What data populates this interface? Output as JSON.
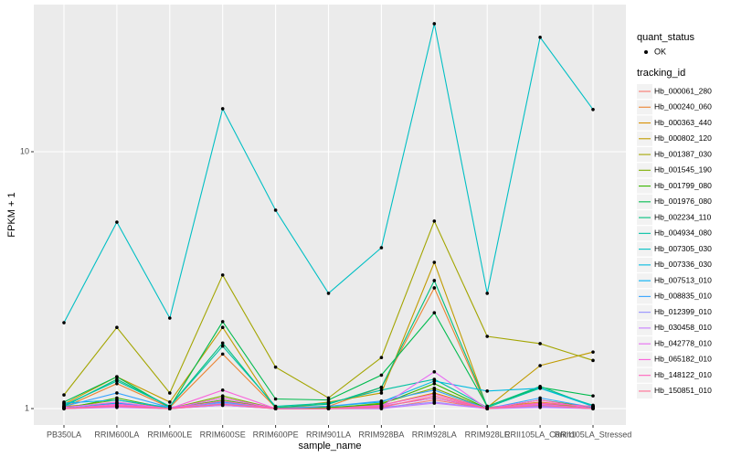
{
  "chart_data": {
    "type": "line",
    "x_label": "sample_name",
    "y_label": "FPKM + 1",
    "log_y": true,
    "grid": true,
    "categories": [
      "PB350LA",
      "RRIM600LA",
      "RRIM600LE",
      "RRIM600SE",
      "RRIM600PE",
      "RRIM901LA",
      "RRIM928BA",
      "RRIM928LA",
      "RRIM928LE",
      "RRII105LA_Control",
      "RRII105LA_Stressed"
    ],
    "ylim": [
      0.863,
      37.4
    ],
    "yticks": [
      1,
      10
    ],
    "legend_title": "tracking_id",
    "shape_legend": {
      "title": "quant_status",
      "labels": [
        "OK"
      ]
    },
    "series": [
      {
        "name": "Hb_000061_280",
        "color": "#F8766D",
        "values": [
          1.0,
          1.02,
          1.0,
          1.03,
          1.0,
          1.0,
          1.0,
          1.08,
          1.0,
          1.02,
          1.0
        ]
      },
      {
        "name": "Hb_000240_060",
        "color": "#EA8331",
        "values": [
          1.01,
          1.25,
          1.01,
          1.63,
          1.01,
          1.02,
          1.21,
          2.95,
          1.01,
          1.06,
          1.01
        ]
      },
      {
        "name": "Hb_000363_440",
        "color": "#D89000",
        "values": [
          1.02,
          1.05,
          1.0,
          1.1,
          1.0,
          1.01,
          1.03,
          1.15,
          1.0,
          1.04,
          1.02
        ]
      },
      {
        "name": "Hb_000802_120",
        "color": "#C09B00",
        "values": [
          1.04,
          1.33,
          1.06,
          2.07,
          1.0,
          1.06,
          1.15,
          3.71,
          1.01,
          1.47,
          1.66
        ]
      },
      {
        "name": "Hb_001387_030",
        "color": "#A3A500",
        "values": [
          1.13,
          2.07,
          1.15,
          3.31,
          1.45,
          1.1,
          1.58,
          5.37,
          1.91,
          1.79,
          1.54
        ]
      },
      {
        "name": "Hb_001545_190",
        "color": "#7CAE00",
        "values": [
          1.01,
          1.08,
          1.0,
          1.12,
          1.0,
          1.0,
          1.05,
          1.2,
          1.0,
          1.05,
          1.0
        ]
      },
      {
        "name": "Hb_001799_080",
        "color": "#39B600",
        "values": [
          1.0,
          1.1,
          1.0,
          1.08,
          1.0,
          1.01,
          1.04,
          1.25,
          1.0,
          1.08,
          1.01
        ]
      },
      {
        "name": "Hb_001976_080",
        "color": "#00BB4E",
        "values": [
          1.06,
          1.33,
          1.01,
          2.18,
          1.09,
          1.08,
          1.35,
          2.36,
          1.02,
          1.21,
          1.12
        ]
      },
      {
        "name": "Hb_002234_110",
        "color": "#00BF7D",
        "values": [
          1.02,
          1.3,
          1.02,
          1.8,
          1.01,
          1.04,
          1.21,
          3.15,
          1.02,
          1.22,
          1.02
        ]
      },
      {
        "name": "Hb_004934_080",
        "color": "#00C1A3",
        "values": [
          1.03,
          1.28,
          1.02,
          1.75,
          1.02,
          1.05,
          1.18,
          1.3,
          1.01,
          1.2,
          1.03
        ]
      },
      {
        "name": "Hb_007305_030",
        "color": "#00BFC4",
        "values": [
          2.16,
          5.32,
          2.25,
          14.7,
          5.92,
          2.81,
          4.23,
          31.5,
          2.81,
          27.9,
          14.6
        ]
      },
      {
        "name": "Hb_007336_030",
        "color": "#00BAE0",
        "values": [
          1.05,
          1.08,
          1.01,
          1.06,
          1.0,
          1.02,
          1.06,
          1.28,
          1.17,
          1.2,
          1.02
        ]
      },
      {
        "name": "Hb_007513_010",
        "color": "#00B0F6",
        "values": [
          1.0,
          1.05,
          1.0,
          1.04,
          1.0,
          1.0,
          1.02,
          1.1,
          1.0,
          1.03,
          1.0
        ]
      },
      {
        "name": "Hb_008835_010",
        "color": "#35A2FF",
        "values": [
          1.02,
          1.15,
          1.01,
          1.06,
          1.0,
          1.02,
          1.07,
          1.18,
          1.0,
          1.1,
          1.01
        ]
      },
      {
        "name": "Hb_012399_010",
        "color": "#9590FF",
        "values": [
          1.0,
          1.02,
          1.0,
          1.05,
          1.0,
          1.0,
          1.01,
          1.06,
          1.0,
          1.02,
          1.0
        ]
      },
      {
        "name": "Hb_030458_010",
        "color": "#C77CFF",
        "values": [
          1.0,
          1.01,
          1.0,
          1.03,
          1.0,
          1.0,
          1.0,
          1.05,
          1.0,
          1.01,
          1.0
        ]
      },
      {
        "name": "Hb_042778_010",
        "color": "#E76BF3",
        "values": [
          1.01,
          1.06,
          1.0,
          1.1,
          1.0,
          1.0,
          1.02,
          1.39,
          1.0,
          1.04,
          1.0
        ]
      },
      {
        "name": "Hb_065182_010",
        "color": "#FA62DB",
        "values": [
          1.0,
          1.04,
          1.0,
          1.18,
          1.0,
          1.0,
          1.03,
          1.14,
          1.0,
          1.08,
          1.0
        ]
      },
      {
        "name": "Hb_148122_010",
        "color": "#FF62BC",
        "values": [
          1.0,
          1.03,
          1.0,
          1.07,
          1.0,
          1.0,
          1.02,
          1.1,
          1.0,
          1.05,
          1.02
        ]
      },
      {
        "name": "Hb_150851_010",
        "color": "#FF6C91",
        "values": [
          1.0,
          1.02,
          1.0,
          1.04,
          1.0,
          1.0,
          1.01,
          1.12,
          1.0,
          1.03,
          1.0
        ]
      }
    ]
  }
}
